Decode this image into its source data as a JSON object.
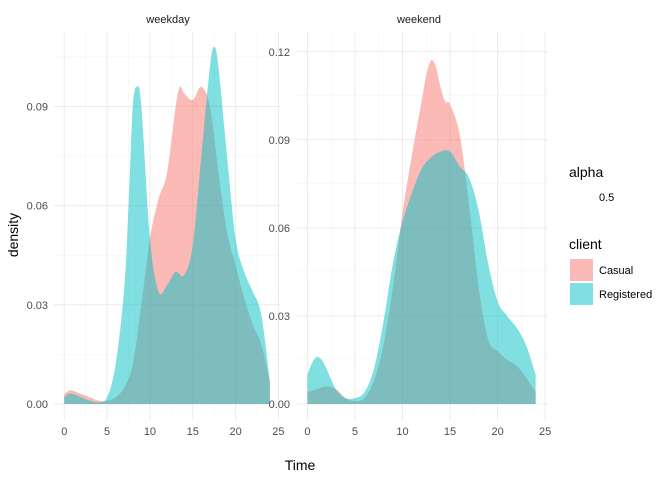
{
  "chart_data": {
    "type": "area",
    "xlabel": "Time",
    "ylabel": "density",
    "legend": {
      "alpha_title": "alpha",
      "alpha_value": "0.5",
      "fill_title": "client",
      "entries": [
        {
          "name": "Casual",
          "color": "#F8766D"
        },
        {
          "name": "Registered",
          "color": "#00BFC4"
        }
      ],
      "position": "right"
    },
    "fill_alpha": 0.5,
    "grid": true,
    "panels": [
      {
        "strip": "weekday",
        "xlim": [
          0,
          24
        ],
        "ylim": [
          0,
          0.108
        ],
        "x_ticks": [
          0,
          5,
          10,
          15,
          20,
          25
        ],
        "y_ticks": [
          0.0,
          0.03,
          0.06,
          0.09
        ],
        "y_tick_labels": [
          "0.00",
          "0.03",
          "0.06",
          "0.09"
        ],
        "series": [
          {
            "name": "Casual",
            "color": "#F8766D",
            "x": [
              0,
              0.5,
              1,
              2,
              3,
              4,
              5,
              6,
              7,
              8,
              9,
              10,
              11,
              12,
              13,
              13.5,
              14,
              15,
              16,
              17,
              18,
              19,
              20,
              21,
              22,
              23,
              24
            ],
            "y": [
              0.003,
              0.004,
              0.004,
              0.003,
              0.002,
              0.001,
              0.001,
              0.002,
              0.005,
              0.012,
              0.03,
              0.05,
              0.062,
              0.07,
              0.09,
              0.096,
              0.094,
              0.092,
              0.096,
              0.09,
              0.07,
              0.052,
              0.042,
              0.032,
              0.024,
              0.018,
              0.007
            ]
          },
          {
            "name": "Registered",
            "color": "#00BFC4",
            "x": [
              0,
              0.5,
              1,
              2,
              3,
              4,
              5,
              6,
              7,
              7.5,
              8,
              8.5,
              9,
              10,
              11,
              12,
              13,
              14,
              15,
              16,
              17,
              17.5,
              18,
              19,
              20,
              21,
              22,
              23,
              24
            ],
            "y": [
              0.002,
              0.003,
              0.003,
              0.002,
              0.001,
              0.0005,
              0.002,
              0.012,
              0.035,
              0.06,
              0.09,
              0.096,
              0.09,
              0.05,
              0.034,
              0.036,
              0.04,
              0.039,
              0.048,
              0.075,
              0.102,
              0.108,
              0.102,
              0.075,
              0.05,
              0.04,
              0.034,
              0.027,
              0.007
            ]
          }
        ]
      },
      {
        "strip": "weekend",
        "xlim": [
          0,
          24
        ],
        "ylim": [
          0,
          0.1216
        ],
        "x_ticks": [
          0,
          5,
          10,
          15,
          20,
          25
        ],
        "y_ticks": [
          0.0,
          0.03,
          0.06,
          0.09,
          0.12
        ],
        "y_tick_labels": [
          "0.00",
          "0.03",
          "0.06",
          "0.09",
          "0.12"
        ],
        "series": [
          {
            "name": "Casual",
            "color": "#F8766D",
            "x": [
              0,
              1,
              2,
              3,
              4,
              5,
              6,
              7,
              8,
              9,
              10,
              11,
              12,
              12.5,
              13,
              13.5,
              14,
              14.5,
              15,
              16,
              17,
              18,
              19,
              20,
              21,
              22,
              23,
              24
            ],
            "y": [
              0.004,
              0.005,
              0.006,
              0.005,
              0.002,
              0.001,
              0.002,
              0.008,
              0.02,
              0.04,
              0.065,
              0.085,
              0.103,
              0.112,
              0.117,
              0.115,
              0.108,
              0.103,
              0.102,
              0.092,
              0.068,
              0.04,
              0.022,
              0.018,
              0.015,
              0.013,
              0.009,
              0.004
            ]
          },
          {
            "name": "Registered",
            "color": "#00BFC4",
            "x": [
              0,
              0.5,
              1,
              1.5,
              2,
              3,
              4,
              5,
              6,
              7,
              8,
              9,
              10,
              11,
              12,
              13,
              14,
              15,
              16,
              17,
              18,
              19,
              20,
              21,
              22,
              23,
              24
            ],
            "y": [
              0.01,
              0.014,
              0.016,
              0.015,
              0.012,
              0.005,
              0.002,
              0.002,
              0.004,
              0.012,
              0.028,
              0.048,
              0.062,
              0.072,
              0.08,
              0.084,
              0.086,
              0.086,
              0.081,
              0.077,
              0.066,
              0.048,
              0.035,
              0.03,
              0.026,
              0.02,
              0.01
            ]
          }
        ]
      }
    ]
  }
}
